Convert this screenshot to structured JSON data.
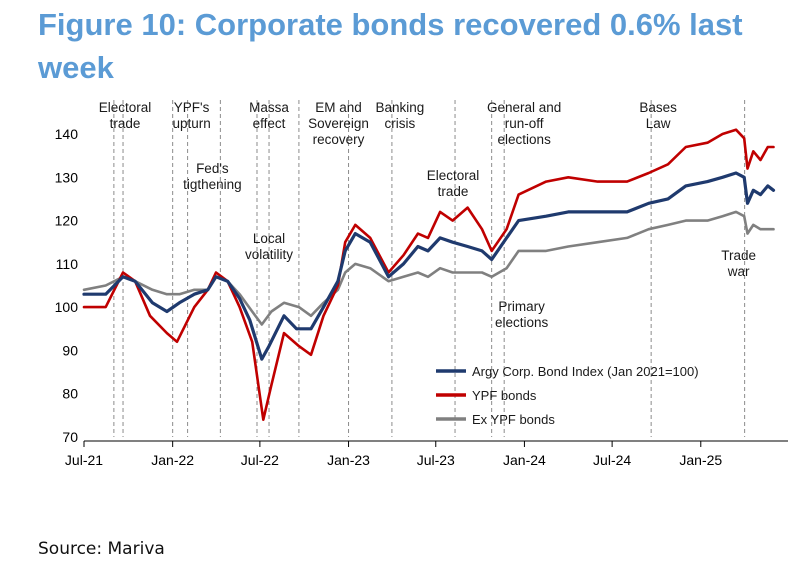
{
  "title": "Figure 10: Corporate bonds recovered 0.6% last week",
  "source": "Source: Mariva",
  "chart_data": {
    "type": "line",
    "title": "",
    "xlabel": "",
    "ylabel": "",
    "ylim": [
      70,
      140
    ],
    "yticks": [
      70,
      80,
      90,
      100,
      110,
      120,
      130,
      140
    ],
    "xlim": [
      "2021-07-01",
      "2025-07-01"
    ],
    "xticks": [
      {
        "date": "2021-07-01",
        "label": "Jul-21"
      },
      {
        "date": "2022-01-01",
        "label": "Jan-22"
      },
      {
        "date": "2022-07-01",
        "label": "Jul-22"
      },
      {
        "date": "2023-01-01",
        "label": "Jan-23"
      },
      {
        "date": "2023-07-01",
        "label": "Jul-23"
      },
      {
        "date": "2024-01-01",
        "label": "Jan-24"
      },
      {
        "date": "2024-07-01",
        "label": "Jul-24"
      },
      {
        "date": "2025-01-01",
        "label": "Jan-25"
      }
    ],
    "grid": false,
    "legend_position": "bottom-right",
    "series": [
      {
        "name": "Argy Corp. Bond Index (Jan 2021=100)",
        "color": "#1f3a6e",
        "points": [
          [
            "2021-07-01",
            103
          ],
          [
            "2021-08-15",
            103
          ],
          [
            "2021-09-20",
            107
          ],
          [
            "2021-10-15",
            106
          ],
          [
            "2021-11-20",
            101
          ],
          [
            "2021-12-20",
            99
          ],
          [
            "2022-01-15",
            101
          ],
          [
            "2022-02-15",
            103
          ],
          [
            "2022-03-15",
            104
          ],
          [
            "2022-04-01",
            107
          ],
          [
            "2022-04-25",
            106
          ],
          [
            "2022-05-20",
            102
          ],
          [
            "2022-06-10",
            97
          ],
          [
            "2022-07-05",
            88
          ],
          [
            "2022-07-20",
            91
          ],
          [
            "2022-08-20",
            98
          ],
          [
            "2022-09-15",
            95
          ],
          [
            "2022-10-15",
            95
          ],
          [
            "2022-11-10",
            100
          ],
          [
            "2022-12-10",
            106
          ],
          [
            "2022-12-25",
            113
          ],
          [
            "2023-01-15",
            117
          ],
          [
            "2023-02-15",
            115
          ],
          [
            "2023-03-25",
            107
          ],
          [
            "2023-04-25",
            110
          ],
          [
            "2023-05-25",
            114
          ],
          [
            "2023-06-15",
            113
          ],
          [
            "2023-07-10",
            116
          ],
          [
            "2023-08-05",
            115
          ],
          [
            "2023-09-05",
            114
          ],
          [
            "2023-10-05",
            113
          ],
          [
            "2023-10-25",
            111
          ],
          [
            "2023-11-25",
            116
          ],
          [
            "2023-12-20",
            120
          ],
          [
            "2024-02-15",
            121
          ],
          [
            "2024-04-01",
            122
          ],
          [
            "2024-06-01",
            122
          ],
          [
            "2024-08-01",
            122
          ],
          [
            "2024-09-15",
            124
          ],
          [
            "2024-10-25",
            125
          ],
          [
            "2024-12-01",
            128
          ],
          [
            "2025-01-15",
            129
          ],
          [
            "2025-02-15",
            130
          ],
          [
            "2025-03-15",
            131
          ],
          [
            "2025-04-01",
            130
          ],
          [
            "2025-04-08",
            124
          ],
          [
            "2025-04-20",
            127
          ],
          [
            "2025-05-05",
            126
          ],
          [
            "2025-05-20",
            128
          ],
          [
            "2025-06-01",
            127
          ]
        ]
      },
      {
        "name": "YPF bonds",
        "color": "#c00000",
        "points": [
          [
            "2021-07-01",
            100
          ],
          [
            "2021-08-15",
            100
          ],
          [
            "2021-09-20",
            108
          ],
          [
            "2021-10-15",
            106
          ],
          [
            "2021-11-15",
            98
          ],
          [
            "2021-12-20",
            94
          ],
          [
            "2022-01-10",
            92
          ],
          [
            "2022-02-15",
            100
          ],
          [
            "2022-03-15",
            104
          ],
          [
            "2022-04-01",
            108
          ],
          [
            "2022-04-25",
            106
          ],
          [
            "2022-05-20",
            100
          ],
          [
            "2022-06-15",
            92
          ],
          [
            "2022-07-08",
            74
          ],
          [
            "2022-07-25",
            82
          ],
          [
            "2022-08-20",
            94
          ],
          [
            "2022-09-20",
            91
          ],
          [
            "2022-10-15",
            89
          ],
          [
            "2022-11-10",
            98
          ],
          [
            "2022-12-10",
            105
          ],
          [
            "2022-12-25",
            115
          ],
          [
            "2023-01-15",
            119
          ],
          [
            "2023-02-15",
            116
          ],
          [
            "2023-03-25",
            108
          ],
          [
            "2023-04-25",
            112
          ],
          [
            "2023-05-25",
            117
          ],
          [
            "2023-06-15",
            116
          ],
          [
            "2023-07-10",
            122
          ],
          [
            "2023-08-05",
            120
          ],
          [
            "2023-09-05",
            123
          ],
          [
            "2023-10-05",
            118
          ],
          [
            "2023-10-25",
            113
          ],
          [
            "2023-11-25",
            118
          ],
          [
            "2023-12-20",
            126
          ],
          [
            "2024-02-15",
            129
          ],
          [
            "2024-04-01",
            130
          ],
          [
            "2024-06-01",
            129
          ],
          [
            "2024-08-01",
            129
          ],
          [
            "2024-09-15",
            131
          ],
          [
            "2024-10-25",
            133
          ],
          [
            "2024-12-01",
            137
          ],
          [
            "2025-01-15",
            138
          ],
          [
            "2025-02-15",
            140
          ],
          [
            "2025-03-15",
            141
          ],
          [
            "2025-04-01",
            139
          ],
          [
            "2025-04-08",
            132
          ],
          [
            "2025-04-20",
            136
          ],
          [
            "2025-05-05",
            134
          ],
          [
            "2025-05-20",
            137
          ],
          [
            "2025-06-01",
            137
          ]
        ]
      },
      {
        "name": "Ex YPF bonds",
        "color": "#808080",
        "points": [
          [
            "2021-07-01",
            104
          ],
          [
            "2021-08-15",
            105
          ],
          [
            "2021-09-20",
            107
          ],
          [
            "2021-10-15",
            106
          ],
          [
            "2021-11-20",
            104
          ],
          [
            "2021-12-20",
            103
          ],
          [
            "2022-01-15",
            103
          ],
          [
            "2022-02-15",
            104
          ],
          [
            "2022-03-15",
            104
          ],
          [
            "2022-04-01",
            107
          ],
          [
            "2022-04-25",
            106
          ],
          [
            "2022-05-20",
            103
          ],
          [
            "2022-06-15",
            99
          ],
          [
            "2022-07-05",
            96
          ],
          [
            "2022-07-25",
            99
          ],
          [
            "2022-08-20",
            101
          ],
          [
            "2022-09-20",
            100
          ],
          [
            "2022-10-15",
            98
          ],
          [
            "2022-11-10",
            101
          ],
          [
            "2022-12-10",
            104
          ],
          [
            "2022-12-25",
            108
          ],
          [
            "2023-01-15",
            110
          ],
          [
            "2023-02-15",
            109
          ],
          [
            "2023-03-25",
            106
          ],
          [
            "2023-04-25",
            107
          ],
          [
            "2023-05-25",
            108
          ],
          [
            "2023-06-15",
            107
          ],
          [
            "2023-07-10",
            109
          ],
          [
            "2023-08-05",
            108
          ],
          [
            "2023-09-05",
            108
          ],
          [
            "2023-10-05",
            108
          ],
          [
            "2023-10-25",
            107
          ],
          [
            "2023-11-25",
            109
          ],
          [
            "2023-12-20",
            113
          ],
          [
            "2024-02-15",
            113
          ],
          [
            "2024-04-01",
            114
          ],
          [
            "2024-06-01",
            115
          ],
          [
            "2024-08-01",
            116
          ],
          [
            "2024-09-15",
            118
          ],
          [
            "2024-10-25",
            119
          ],
          [
            "2024-12-01",
            120
          ],
          [
            "2025-01-15",
            120
          ],
          [
            "2025-02-15",
            121
          ],
          [
            "2025-03-15",
            122
          ],
          [
            "2025-04-01",
            121
          ],
          [
            "2025-04-08",
            117
          ],
          [
            "2025-04-20",
            119
          ],
          [
            "2025-05-05",
            118
          ],
          [
            "2025-05-20",
            118
          ],
          [
            "2025-06-01",
            118
          ]
        ]
      }
    ],
    "events": [
      {
        "date": "2021-09-01",
        "lines": []
      },
      {
        "date": "2021-09-20",
        "lines": [
          "Electoral",
          "trade"
        ]
      },
      {
        "date": "2022-01-01",
        "lines": []
      },
      {
        "date": "2022-02-01",
        "lines": [
          "YPF's",
          "upturn"
        ]
      },
      {
        "date": "2022-04-10",
        "lines": [
          "Fed's",
          "tigthening"
        ]
      },
      {
        "date": "2022-06-25",
        "lines": [
          "Local",
          "volatility"
        ]
      },
      {
        "date": "2022-07-20",
        "lines": [
          "Massa",
          "effect"
        ]
      },
      {
        "date": "2022-09-20",
        "lines": []
      },
      {
        "date": "2023-01-01",
        "lines": [
          "EM and",
          "Sovereign",
          "recovery"
        ]
      },
      {
        "date": "2023-04-01",
        "lines": [
          "Banking",
          "crisis"
        ]
      },
      {
        "date": "2023-08-10",
        "lines": [
          "Electoral",
          "trade"
        ]
      },
      {
        "date": "2023-10-25",
        "lines": [
          "Primary",
          "elections"
        ]
      },
      {
        "date": "2023-11-20",
        "lines": [
          "General and",
          "run-off",
          "elections"
        ]
      },
      {
        "date": "2024-09-20",
        "lines": [
          "Bases",
          "Law"
        ]
      },
      {
        "date": "2025-04-02",
        "lines": [
          "Trade",
          "war"
        ]
      }
    ]
  }
}
